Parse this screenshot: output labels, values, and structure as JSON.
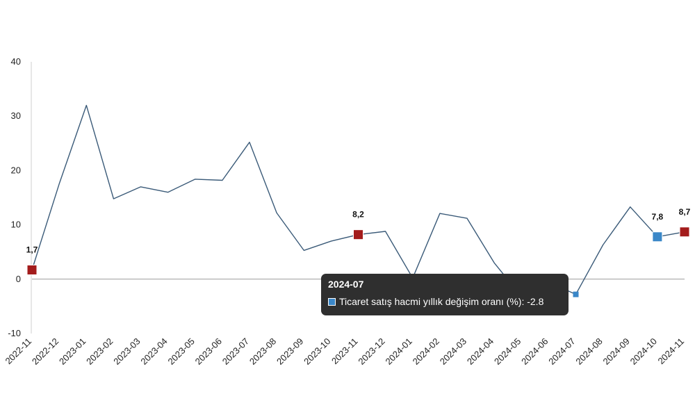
{
  "chart_data": {
    "type": "line",
    "title": "",
    "xlabel": "",
    "ylabel": "",
    "ylim": [
      -10,
      40
    ],
    "yticks": [
      "-10",
      "0",
      "10",
      "20",
      "30",
      "40"
    ],
    "categories": [
      "2022-11",
      "2022-12",
      "2023-01",
      "2023-02",
      "2023-03",
      "2023-04",
      "2023-05",
      "2023-06",
      "2023-07",
      "2023-08",
      "2023-09",
      "2023-10",
      "2023-11",
      "2023-12",
      "2024-01",
      "2024-02",
      "2024-03",
      "2024-04",
      "2024-05",
      "2024-06",
      "2024-07",
      "2024-08",
      "2024-09",
      "2024-10",
      "2024-11"
    ],
    "series": [
      {
        "name": "Ticaret satış hacmi yıllık değişim oranı (%)",
        "values": [
          1.7,
          17.5,
          32.0,
          14.8,
          17.0,
          16.0,
          18.4,
          18.2,
          25.2,
          12.2,
          5.3,
          7.0,
          8.2,
          8.8,
          0.2,
          12.1,
          11.2,
          3.0,
          -3.2,
          -0.5,
          -2.8,
          6.3,
          13.3,
          7.8,
          8.7
        ],
        "color": "#3a5a78"
      }
    ],
    "grid": false,
    "zero_line": true,
    "highlighted_points": [
      {
        "category": "2022-11",
        "value": 1.7,
        "label": "1,7",
        "color": "#a31c1c"
      },
      {
        "category": "2023-11",
        "value": 8.2,
        "label": "8,2",
        "color": "#a31c1c"
      },
      {
        "category": "2024-10",
        "value": 7.8,
        "label": "7,8",
        "color": "#3a87c8"
      },
      {
        "category": "2024-11",
        "value": 8.7,
        "label": "8,7",
        "color": "#a31c1c"
      }
    ],
    "hover_point": {
      "category": "2024-07",
      "value": -2.8,
      "color": "#3a87c8"
    }
  },
  "tooltip": {
    "title": "2024-07",
    "series_name": "Ticaret satış hacmi yıllık değişim oranı (%)",
    "value_text": "-2.8",
    "separator": ": "
  }
}
